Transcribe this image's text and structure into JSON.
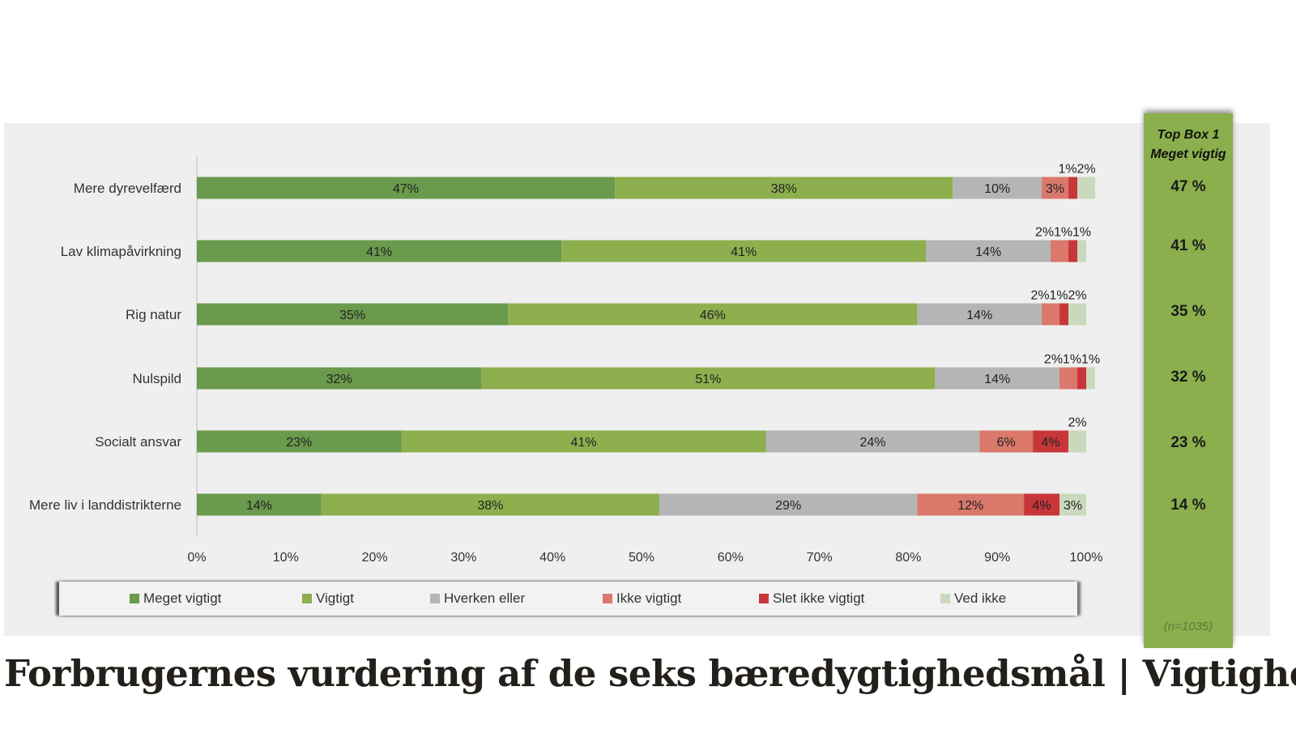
{
  "chart_data": {
    "type": "bar",
    "orientation": "horizontal",
    "stacked": true,
    "title": "Forbrugernes vurdering af de seks bæredygtighedsmål | Vigtighed",
    "categories": [
      "Mere dyrevelfærd",
      "Lav klimapåvirkning",
      "Rig natur",
      "Nulspild",
      "Socialt ansvar",
      "Mere liv i landdistrikterne"
    ],
    "series": [
      {
        "name": "Meget vigtigt",
        "color": "#6a9a4c",
        "values": [
          47,
          41,
          35,
          32,
          23,
          14
        ]
      },
      {
        "name": "Vigtigt",
        "color": "#8daf4e",
        "values": [
          38,
          41,
          46,
          51,
          41,
          38
        ]
      },
      {
        "name": "Hverken eller",
        "color": "#b5b5b5",
        "values": [
          10,
          14,
          14,
          14,
          24,
          29
        ]
      },
      {
        "name": "Ikke vigtigt",
        "color": "#d9786b",
        "values": [
          3,
          2,
          2,
          2,
          6,
          12
        ]
      },
      {
        "name": "Slet ikke vigtigt",
        "color": "#c8363a",
        "values": [
          1,
          1,
          1,
          1,
          4,
          4
        ]
      },
      {
        "name": "Ved ikke",
        "color": "#cad9bd",
        "values": [
          2,
          1,
          2,
          1,
          2,
          3
        ]
      }
    ],
    "xlim": [
      0,
      100
    ],
    "xticks": [
      "0%",
      "10%",
      "20%",
      "30%",
      "40%",
      "50%",
      "60%",
      "70%",
      "80%",
      "90%",
      "100%"
    ],
    "legend_position": "bottom"
  },
  "topbox": {
    "title_line1": "Top Box 1",
    "title_line2": "Meget vigtig",
    "values": [
      "47 %",
      "41 %",
      "35 %",
      "32 %",
      "23 %",
      "14 %"
    ],
    "n": "(n=1035)"
  }
}
